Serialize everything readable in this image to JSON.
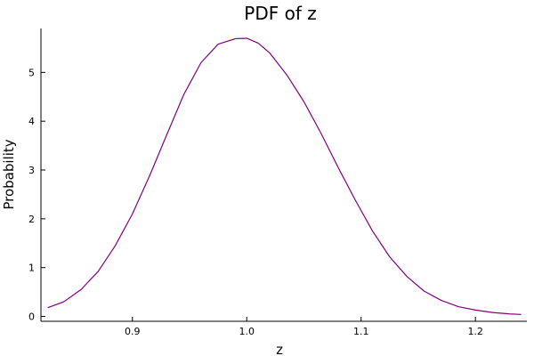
{
  "chart_data": {
    "type": "line",
    "title": "PDF of z",
    "xlabel": "z",
    "ylabel": "Probability",
    "xlim": [
      0.82,
      1.245
    ],
    "ylim": [
      -0.1,
      5.9
    ],
    "xticks": [
      {
        "value": 0.9,
        "label": "0.9"
      },
      {
        "value": 1.0,
        "label": "1.0"
      },
      {
        "value": 1.1,
        "label": "1.1"
      },
      {
        "value": 1.2,
        "label": "1.2"
      }
    ],
    "yticks": [
      {
        "value": 0,
        "label": "0"
      },
      {
        "value": 1,
        "label": "1"
      },
      {
        "value": 2,
        "label": "2"
      },
      {
        "value": 3,
        "label": "3"
      },
      {
        "value": 4,
        "label": "4"
      },
      {
        "value": 5,
        "label": "5"
      }
    ],
    "grid": false,
    "legend": "none",
    "series": [
      {
        "color": "#800080",
        "x": [
          0.826,
          0.84,
          0.855,
          0.87,
          0.885,
          0.9,
          0.915,
          0.93,
          0.945,
          0.96,
          0.975,
          0.99,
          1.0,
          1.01,
          1.02,
          1.035,
          1.05,
          1.065,
          1.08,
          1.095,
          1.11,
          1.125,
          1.14,
          1.155,
          1.17,
          1.185,
          1.2,
          1.215,
          1.23,
          1.24
        ],
        "y": [
          0.18,
          0.3,
          0.55,
          0.92,
          1.45,
          2.1,
          2.88,
          3.72,
          4.55,
          5.2,
          5.58,
          5.69,
          5.7,
          5.6,
          5.4,
          4.95,
          4.4,
          3.75,
          3.05,
          2.38,
          1.75,
          1.22,
          0.82,
          0.52,
          0.33,
          0.2,
          0.13,
          0.08,
          0.05,
          0.04
        ]
      }
    ]
  }
}
